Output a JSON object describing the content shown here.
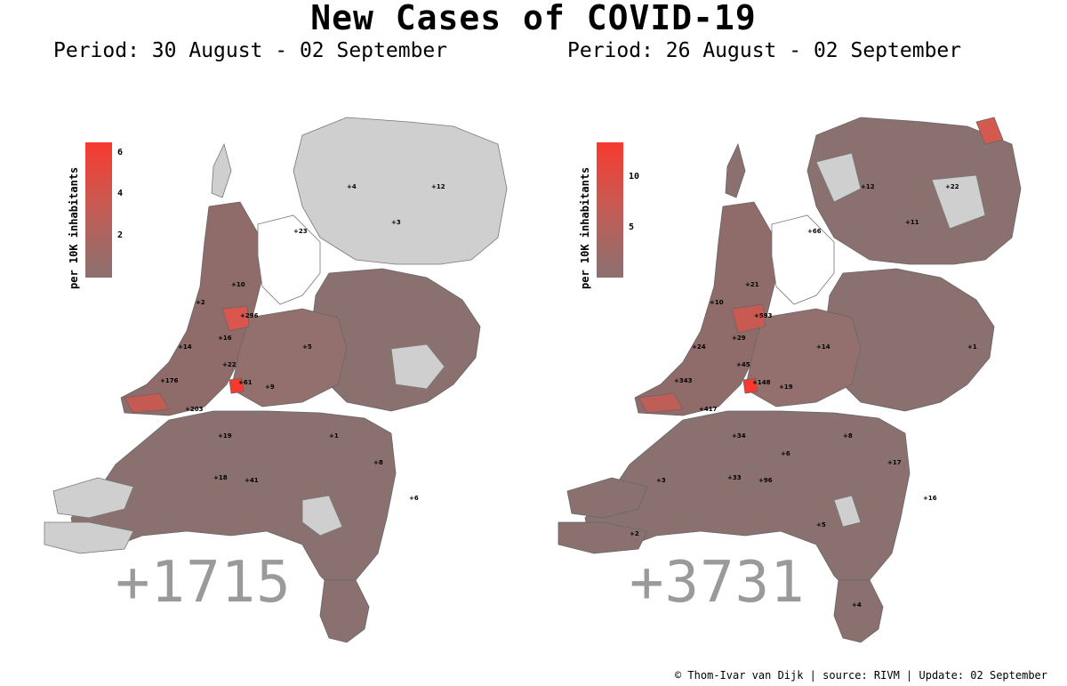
{
  "title": "New Cases of COVID-19",
  "footer": "© Thom-Ivar van Dijk | source: RIVM | Update: 02 September",
  "colors": {
    "low": "#8a7170",
    "high": "#f8392f",
    "no_cases": "#d3d3d3",
    "total_text": "#9a9a9a"
  },
  "panels": [
    {
      "period": "Period: 30 August - 02 September",
      "total": "+1715",
      "legend_label": "per 10K inhabitants",
      "legend_ticks": [
        "6",
        "4",
        "2"
      ],
      "legend_tick_values": [
        6,
        4,
        2
      ],
      "legend_max": 6.5,
      "labels": [
        "+296",
        "+203",
        "+176",
        "+61",
        "+41",
        "+23",
        "+22",
        "+19",
        "+18",
        "+16",
        "+14",
        "+12",
        "+10",
        "+9",
        "+8",
        "+6",
        "+5",
        "+4",
        "+3",
        "+2",
        "+1"
      ]
    },
    {
      "period": "Period: 26 August - 02 September",
      "total": "+3731",
      "legend_label": "per 10K inhabitants",
      "legend_ticks": [
        "10",
        "5"
      ],
      "legend_tick_values": [
        10,
        5
      ],
      "legend_max": 13.5,
      "labels": [
        "+593",
        "+417",
        "+343",
        "+148",
        "+96",
        "+66",
        "+45",
        "+34",
        "+33",
        "+29",
        "+24",
        "+22",
        "+21",
        "+19",
        "+17",
        "+16",
        "+14",
        "+12",
        "+11",
        "+10",
        "+8",
        "+6",
        "+5",
        "+4",
        "+3",
        "+2",
        "+1"
      ]
    }
  ]
}
